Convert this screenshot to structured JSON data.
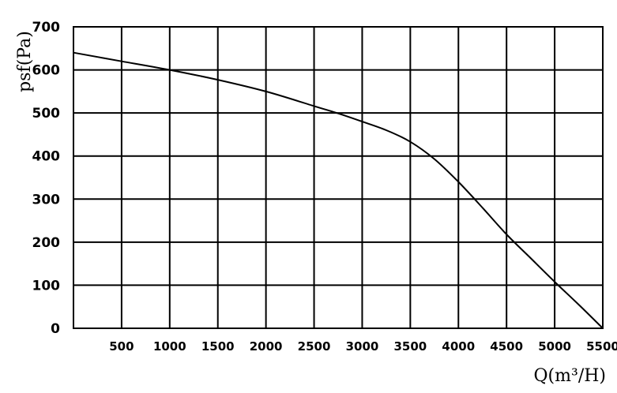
{
  "chart_data": {
    "type": "line",
    "title": "",
    "xlabel": "Q(m³/H)",
    "ylabel": "psf(Pa)",
    "xlim": [
      0,
      5500
    ],
    "ylim": [
      0,
      700
    ],
    "x_ticks": [
      500,
      1000,
      1500,
      2000,
      2500,
      3000,
      3500,
      4000,
      4500,
      5000,
      5500
    ],
    "y_ticks": [
      0,
      100,
      200,
      300,
      400,
      500,
      600,
      700
    ],
    "grid": true,
    "line_color": "#000000",
    "series": [
      {
        "x": [
          0,
          500,
          1000,
          1500,
          2000,
          2500,
          2750,
          3000,
          3250,
          3500,
          3750,
          4000,
          4250,
          4500,
          4750,
          5000,
          5250,
          5500
        ],
        "y": [
          640,
          620,
          600,
          577,
          550,
          516,
          499,
          480,
          460,
          433,
          393,
          340,
          280,
          218,
          163,
          108,
          55,
          0
        ]
      }
    ]
  }
}
